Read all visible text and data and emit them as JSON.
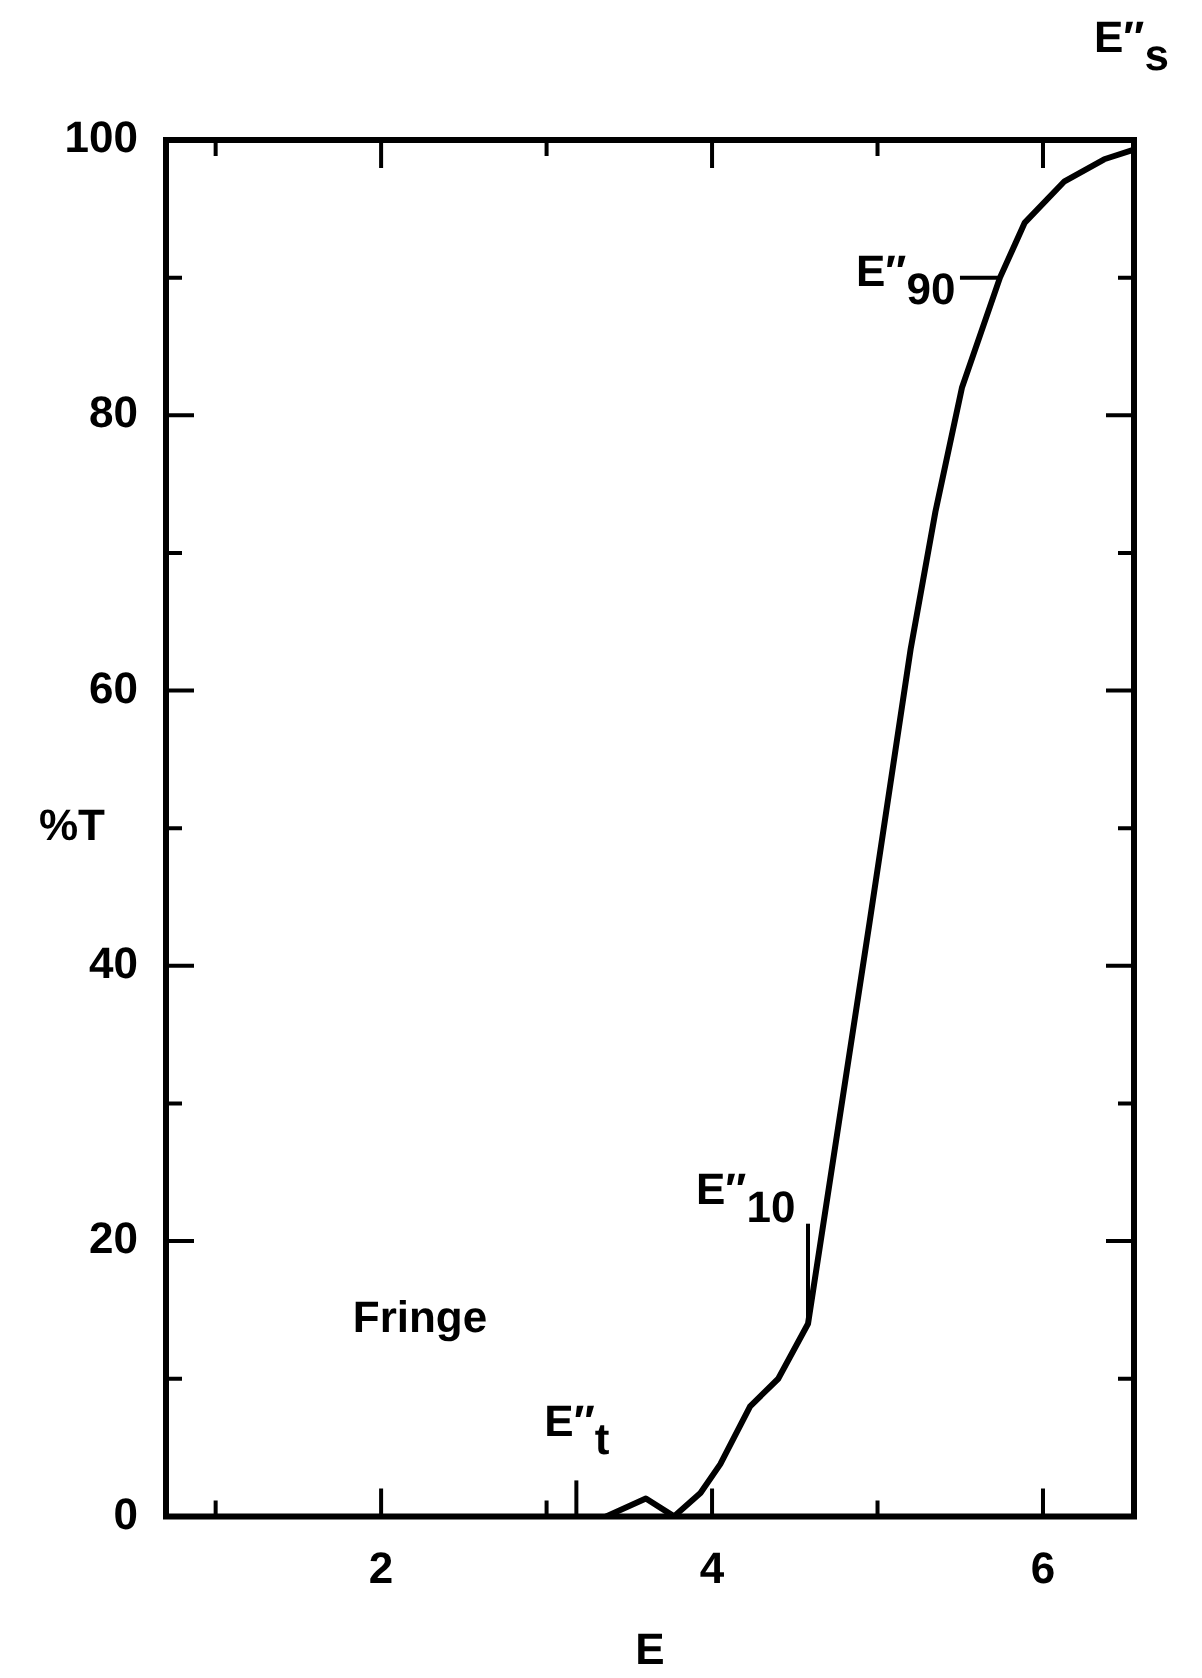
{
  "chart_data": {
    "type": "line",
    "xlabel": "E",
    "ylabel": "%T",
    "x": [
      3.36,
      3.6,
      3.77,
      3.93,
      4.05,
      4.23,
      4.4,
      4.58,
      4.95,
      5.2,
      5.35,
      5.51,
      5.74,
      5.89,
      6.13,
      6.37,
      6.55
    ],
    "series": [
      {
        "color": "#000000",
        "values": [
          0,
          1.3,
          0,
          1.7,
          3.8,
          8,
          10,
          14,
          43,
          63,
          73,
          82,
          90,
          94,
          97,
          98.6,
          99.3
        ]
      }
    ],
    "xlim": [
      0.7,
      6.55
    ],
    "ylim": [
      0,
      100
    ],
    "xticks": [
      {
        "value": 1,
        "label": null
      },
      2,
      {
        "value": 3,
        "label": null
      },
      4,
      {
        "value": 5,
        "label": null
      },
      6
    ],
    "yticks": [
      0,
      {
        "value": 10,
        "label": null
      },
      20,
      {
        "value": 30,
        "label": null
      },
      40,
      {
        "value": 50,
        "label": null
      },
      60,
      {
        "value": 70,
        "label": null
      },
      80,
      {
        "value": 90,
        "label": null
      },
      100
    ],
    "annotations": [
      "E″$_{s}$",
      {
        "text": "E″$_{90}$",
        "x": 5.74,
        "y": 90
      },
      {
        "text": "E″$_{10}$",
        "x": 4.58,
        "y": 14
      },
      "Fringe",
      "E″$_{t}$"
    ],
    "grid": false,
    "legend": false,
    "marker": "none",
    "line_style": "solid"
  }
}
